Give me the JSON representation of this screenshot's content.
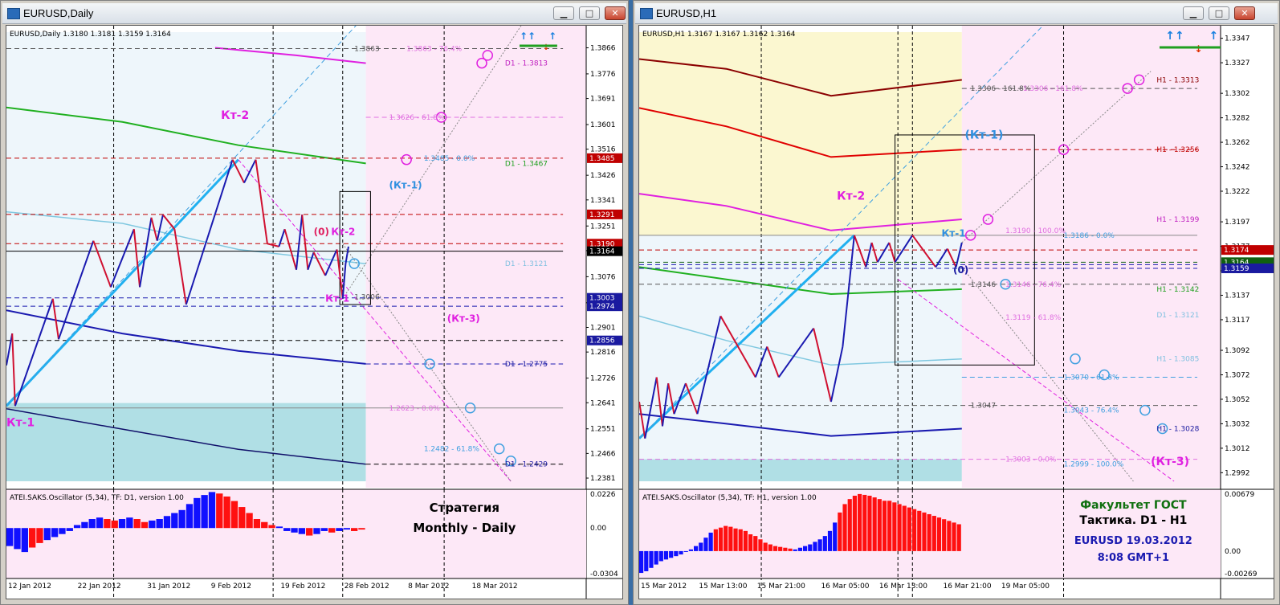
{
  "windows": [
    {
      "title": "EURUSD,Daily",
      "chart_data": {
        "type": "candlestick-line",
        "symbol_header": "EURUSD,Daily 1.3180 1.3181 1.3159 1.3164",
        "price_ticks": [
          "1.3866",
          "1.3776",
          "1.3691",
          "1.3601",
          "1.3516",
          "1.3426",
          "1.3341",
          "1.3251",
          "1.3166",
          "1.3076",
          "1.2986",
          "1.2901",
          "1.2816",
          "1.2726",
          "1.2641",
          "1.2551",
          "1.2466",
          "1.2381"
        ],
        "ylim": [
          1.237,
          1.392
        ],
        "date_ticks": [
          "12 Jan 2012",
          "22 Jan 2012",
          "31 Jan 2012",
          "9 Feb 2012",
          "19 Feb 2012",
          "28 Feb 2012",
          "8 Mar 2012",
          "18 Mar 2012"
        ],
        "price_labels": [
          {
            "text": "1.3485",
            "value": 1.3485,
            "color": "#c00000"
          },
          {
            "text": "1.3291",
            "value": 1.3291,
            "color": "#c00000"
          },
          {
            "text": "1.3190",
            "value": 1.319,
            "color": "#c00000"
          },
          {
            "text": "1.3164",
            "value": 1.3164,
            "color": "#000000"
          },
          {
            "text": "1.3003",
            "value": 1.3003,
            "color": "#1a1aa0"
          },
          {
            "text": "1.2974",
            "value": 1.2974,
            "color": "#1a1aa0"
          },
          {
            "text": "1.2856",
            "value": 1.2856,
            "color": "#1a1aa0"
          }
        ],
        "level_labels": [
          {
            "text": "1.3863",
            "value": 1.3863,
            "color": "#555555"
          },
          {
            "text": "1.3863 - 76.4%",
            "value": 1.3863,
            "color": "#e070e0"
          },
          {
            "text": "D1 - 1.3813",
            "value": 1.3813,
            "color": "#c020c0"
          },
          {
            "text": "1.3626 - 61.8%",
            "value": 1.3626,
            "color": "#e070e0"
          },
          {
            "text": "1.3485 - 0.0%",
            "value": 1.3485,
            "color": "#40a0e0"
          },
          {
            "text": "D1 - 1.3467",
            "value": 1.3467,
            "color": "#20a020"
          },
          {
            "text": "D1 - 1.3121",
            "value": 1.3121,
            "color": "#80c0e0"
          },
          {
            "text": "1.3006",
            "value": 1.3006,
            "color": "#555555"
          },
          {
            "text": "D1 - 1.2775",
            "value": 1.2775,
            "color": "#1a1aa0"
          },
          {
            "text": "1.2623 - 0.0%",
            "value": 1.2623,
            "color": "#e070e0"
          },
          {
            "text": "1.2482 - 61.8%",
            "value": 1.2482,
            "color": "#40a0e0"
          },
          {
            "text": "D1 - 1.2429",
            "value": 1.2429,
            "color": "#1a1aa0"
          }
        ],
        "annotations": [
          {
            "text": "Кт-2",
            "color": "#e020e0"
          },
          {
            "text": "(Кт-1)",
            "color": "#3090e0"
          },
          {
            "text": "(0)",
            "color": "#e02060"
          },
          {
            "text": "Кт-2",
            "color": "#e020e0"
          },
          {
            "text": "Кт-1",
            "color": "#e020e0"
          },
          {
            "text": "(Кт-3)",
            "color": "#e020e0"
          },
          {
            "text": "Кт-1",
            "color": "#e020e0"
          }
        ],
        "oscillator": {
          "title": "ATEI.SAKS.Oscillator (5,34), TF: D1, version 1.00",
          "ticks": [
            "0.0226",
            "0.00",
            "-0.0304"
          ],
          "values": [
            -0.012,
            -0.014,
            -0.016,
            -0.013,
            -0.01,
            -0.008,
            -0.006,
            -0.004,
            -0.002,
            0.002,
            0.004,
            0.006,
            0.007,
            0.006,
            0.005,
            0.006,
            0.007,
            0.006,
            0.004,
            0.005,
            0.006,
            0.008,
            0.01,
            0.012,
            0.016,
            0.02,
            0.022,
            0.024,
            0.023,
            0.021,
            0.018,
            0.014,
            0.01,
            0.006,
            0.004,
            0.002,
            0.001,
            -0.002,
            -0.003,
            -0.004,
            -0.005,
            -0.004,
            -0.002,
            -0.003,
            -0.002,
            -0.001,
            -0.002,
            -0.001
          ],
          "colors": [
            "b",
            "b",
            "b",
            "r",
            "r",
            "b",
            "b",
            "b",
            "b",
            "b",
            "b",
            "b",
            "b",
            "r",
            "r",
            "b",
            "b",
            "r",
            "r",
            "b",
            "b",
            "b",
            "b",
            "b",
            "b",
            "b",
            "b",
            "b",
            "r",
            "r",
            "r",
            "r",
            "r",
            "r",
            "r",
            "r",
            "b",
            "b",
            "b",
            "b",
            "r",
            "b",
            "b",
            "r",
            "b",
            "b",
            "r",
            "r"
          ]
        },
        "caption": [
          "Стратегия",
          "Monthly - Daily"
        ]
      }
    },
    {
      "title": "EURUSD,H1",
      "chart_data": {
        "type": "candlestick-line",
        "symbol_header": "EURUSD,H1 1.3167 1.3167 1.3162 1.3164",
        "price_ticks": [
          "1.3347",
          "1.3327",
          "1.3302",
          "1.3282",
          "1.3262",
          "1.3242",
          "1.3222",
          "1.3197",
          "1.3177",
          "1.3157",
          "1.3137",
          "1.3117",
          "1.3092",
          "1.3072",
          "1.3052",
          "1.3032",
          "1.3012",
          "1.2992"
        ],
        "ylim": [
          1.2985,
          1.3352
        ],
        "date_ticks": [
          "15 Mar 2012",
          "15 Mar 13:00",
          "15 Mar 21:00",
          "16 Mar 05:00",
          "16 Mar 13:00",
          "16 Mar 21:00",
          "19 Mar 05:00"
        ],
        "price_labels": [
          {
            "text": "1.3174",
            "value": 1.3174,
            "color": "#c00000"
          },
          {
            "text": "1.3164",
            "value": 1.3164,
            "color": "#106010"
          },
          {
            "text": "1.3159",
            "value": 1.3159,
            "color": "#1a1aa0"
          }
        ],
        "level_labels": [
          {
            "text": "H1 - 1.3313",
            "value": 1.3313,
            "color": "#8b0000"
          },
          {
            "text": "1.3306 - 161.8%",
            "value": 1.3306,
            "color": "#555555"
          },
          {
            "text": "1.3306 - 161.8%",
            "value": 1.3306,
            "color": "#e070e0"
          },
          {
            "text": "H1 - 1.3256",
            "value": 1.3256,
            "color": "#c00000"
          },
          {
            "text": "H1 - 1.3199",
            "value": 1.3199,
            "color": "#c020c0"
          },
          {
            "text": "1.3190 - 100.0%",
            "value": 1.319,
            "color": "#e070e0"
          },
          {
            "text": "1.3186 - 0.0%",
            "value": 1.3186,
            "color": "#40a0e0"
          },
          {
            "text": "1.3146",
            "value": 1.3146,
            "color": "#555555"
          },
          {
            "text": "1.3146 - 76.4%",
            "value": 1.3146,
            "color": "#e070e0"
          },
          {
            "text": "H1 - 1.3142",
            "value": 1.3142,
            "color": "#20a020"
          },
          {
            "text": "1.3119 - 61.8%",
            "value": 1.3119,
            "color": "#e070e0"
          },
          {
            "text": "D1 - 1.3121",
            "value": 1.3121,
            "color": "#80c0e0"
          },
          {
            "text": "H1 - 1.3085",
            "value": 1.3085,
            "color": "#80c0e0"
          },
          {
            "text": "1.3070 - 61.8%",
            "value": 1.307,
            "color": "#40a0e0"
          },
          {
            "text": "1.3047",
            "value": 1.3047,
            "color": "#555555"
          },
          {
            "text": "1.3043 - 76.4%",
            "value": 1.3043,
            "color": "#40a0e0"
          },
          {
            "text": "H1 - 1.3028",
            "value": 1.3028,
            "color": "#1a1aa0"
          },
          {
            "text": "1.3003 - 0.0%",
            "value": 1.3003,
            "color": "#e070e0"
          },
          {
            "text": "1.2999 - 100.0%",
            "value": 1.2999,
            "color": "#40a0e0"
          }
        ],
        "annotations": [
          {
            "text": "(Кт-1)",
            "color": "#3090e0"
          },
          {
            "text": "Кт-2",
            "color": "#e020e0"
          },
          {
            "text": "Кт-1",
            "color": "#3090e0"
          },
          {
            "text": "(0)",
            "color": "#1a1aa0"
          },
          {
            "text": "(Кт-3)",
            "color": "#e020e0"
          }
        ],
        "oscillator": {
          "title": "ATEI.SAKS.Oscillator (5,34), TF: H1, version 1.00",
          "ticks": [
            "0.00679",
            "0.00",
            "-0.00269"
          ],
          "values": [
            -0.0026,
            -0.0024,
            -0.002,
            -0.0016,
            -0.0012,
            -0.001,
            -0.0008,
            -0.0006,
            -0.0004,
            -0.0001,
            0.0002,
            0.0006,
            0.001,
            0.0016,
            0.0022,
            0.0026,
            0.0028,
            0.003,
            0.0029,
            0.0027,
            0.0026,
            0.0024,
            0.002,
            0.0018,
            0.0014,
            0.001,
            0.0008,
            0.0006,
            0.0005,
            0.0004,
            0.0003,
            0.0002,
            0.0004,
            0.0006,
            0.0008,
            0.0011,
            0.0014,
            0.0018,
            0.0024,
            0.0034,
            0.0046,
            0.0056,
            0.0062,
            0.0066,
            0.0068,
            0.0067,
            0.0066,
            0.0064,
            0.0062,
            0.006,
            0.006,
            0.0058,
            0.0056,
            0.0054,
            0.0052,
            0.005,
            0.0048,
            0.0046,
            0.0044,
            0.0042,
            0.004,
            0.0038,
            0.0036,
            0.0034,
            0.0032
          ],
          "colors": [
            "b",
            "b",
            "b",
            "b",
            "b",
            "b",
            "b",
            "b",
            "b",
            "b",
            "b",
            "b",
            "b",
            "b",
            "b",
            "r",
            "r",
            "r",
            "r",
            "r",
            "r",
            "r",
            "r",
            "r",
            "r",
            "r",
            "r",
            "r",
            "r",
            "r",
            "r",
            "b",
            "b",
            "b",
            "b",
            "b",
            "b",
            "b",
            "b",
            "b",
            "r",
            "r",
            "r",
            "r",
            "r",
            "r",
            "r",
            "r",
            "r",
            "r",
            "r",
            "r",
            "r",
            "r",
            "r",
            "r",
            "r",
            "r",
            "r",
            "r",
            "r",
            "r",
            "r",
            "r",
            "r"
          ]
        },
        "caption_green": "Факультет ГОСТ",
        "caption_black": "Тактика. D1 - H1",
        "caption_blue": [
          "EURUSD 19.03.2012",
          "8:08 GMT+1"
        ]
      }
    }
  ],
  "buttons": {
    "minimize": "▁",
    "maximize": "□",
    "close": "✕"
  }
}
